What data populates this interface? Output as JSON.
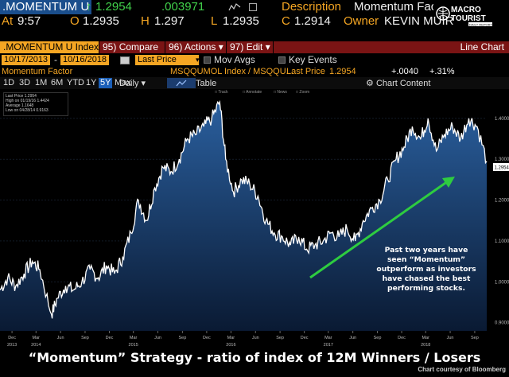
{
  "quote": {
    "ticker": ".MOMENTUM U",
    "last_change_arrow": "↑",
    "last": "1.2954",
    "change": ".003971",
    "desc_label": "Description",
    "desc_value": "Momentum Factor",
    "at_label": "At",
    "at_time": "9:57",
    "open_label": "O",
    "open_value": "1.2935",
    "high_label": "H",
    "high_value": "1.297",
    "low_label": "L",
    "low_value": "1.2935",
    "close_label": "C",
    "close_value": "1.2914",
    "owner_label": "Owner",
    "owner_value": "KEVIN MUIR"
  },
  "logo": {
    "line1": "MACRO",
    "line2": "TOURIST",
    "tag": "DAILY REPORT"
  },
  "toolbar": {
    "security": ".MOMENTUM U Index",
    "compare_num": "95)",
    "compare": "Compare",
    "actions_num": "96)",
    "actions": "Actions",
    "edit_num": "97)",
    "edit": "Edit",
    "chart_type": "Line Chart"
  },
  "controls": {
    "start_date": "10/17/2013",
    "end_date": "10/16/2018",
    "price_field": "Last Price",
    "mov_avgs": "Mov Avgs",
    "key_events": "Key Events"
  },
  "subheader": {
    "name": "Momentum Factor",
    "series_ref": "MSQQUMOL Index / MSQQU...",
    "last_price_label": "Last Price",
    "last_price": "1.2954",
    "change_abs": "+.0040",
    "change_pct": "+.31%"
  },
  "ranges": [
    "1D",
    "3D",
    "1M",
    "6M",
    "YTD",
    "1Y",
    "5Y",
    "Max"
  ],
  "range_selected": "5Y",
  "period": "Daily",
  "table_label": "Table",
  "chart_content_label": "Chart Content",
  "chart_tools": [
    "Track",
    "Annotate",
    "News",
    "Zoom"
  ],
  "legend": {
    "l1": "Last Price 1.2954",
    "l2": "High on 01/19/16 1.4424",
    "l3": "Average 1.1648",
    "l4": "Low on 04/28/14 0.9163"
  },
  "annotation": "Past two years have seen “Momentum” outperform as investors have chased the best performing stocks.",
  "title": "“Momentum” Strategy - ratio of index of 12M Winners / Losers",
  "credit": "Chart courtesy of Bloomberg",
  "colors": {
    "bloomberg_orange": "#f5a623",
    "accent_blue": "#1b5fb8",
    "line": "#ffffff",
    "arrow": "#2ecc40"
  },
  "chart_data": {
    "type": "area",
    "series": [
      {
        "name": "Last Price",
        "x": [
          "2013-10-17",
          "2013-11-15",
          "2013-12-15",
          "2014-01-15",
          "2014-02-15",
          "2014-03-15",
          "2014-04-28",
          "2014-05-20",
          "2014-06-20",
          "2014-07-20",
          "2014-08-20",
          "2014-09-20",
          "2014-10-20",
          "2014-11-20",
          "2014-12-20",
          "2015-01-20",
          "2015-02-20",
          "2015-03-20",
          "2015-04-20",
          "2015-05-20",
          "2015-06-20",
          "2015-07-20",
          "2015-08-20",
          "2015-09-20",
          "2015-10-20",
          "2015-11-20",
          "2015-12-20",
          "2016-01-19",
          "2016-02-10",
          "2016-03-10",
          "2016-04-10",
          "2016-05-10",
          "2016-06-10",
          "2016-07-10",
          "2016-08-10",
          "2016-09-10",
          "2016-10-10",
          "2016-11-10",
          "2016-12-10",
          "2017-01-10",
          "2017-02-10",
          "2017-03-10",
          "2017-04-10",
          "2017-05-10",
          "2017-06-10",
          "2017-07-10",
          "2017-08-10",
          "2017-09-10",
          "2017-10-10",
          "2017-11-10",
          "2017-12-10",
          "2018-01-10",
          "2018-02-10",
          "2018-03-10",
          "2018-04-10",
          "2018-05-10",
          "2018-06-10",
          "2018-07-10",
          "2018-08-10",
          "2018-09-10",
          "2018-10-16"
        ],
        "values": [
          0.98,
          1.01,
          0.99,
          1.02,
          1.05,
          1.03,
          0.92,
          0.96,
          0.99,
          0.98,
          1.0,
          1.03,
          1.01,
          1.04,
          1.02,
          1.06,
          1.12,
          1.2,
          1.15,
          1.23,
          1.28,
          1.27,
          1.3,
          1.35,
          1.36,
          1.38,
          1.4,
          1.44,
          1.3,
          1.22,
          1.25,
          1.24,
          1.21,
          1.15,
          1.12,
          1.11,
          1.09,
          1.11,
          1.08,
          1.09,
          1.1,
          1.12,
          1.11,
          1.13,
          1.1,
          1.15,
          1.18,
          1.2,
          1.25,
          1.3,
          1.33,
          1.38,
          1.35,
          1.4,
          1.32,
          1.36,
          1.38,
          1.35,
          1.4,
          1.38,
          1.2954
        ]
      }
    ],
    "ylim": [
      0.88,
      1.46
    ],
    "y_ticks": [
      "0.9000",
      "1.0000",
      "1.1000",
      "1.2000",
      "1.3000",
      "1.4000"
    ],
    "last_tag": "1.2954",
    "x_ticks": [
      {
        "label": "Dec",
        "year": "2013",
        "date": "2013-12-01"
      },
      {
        "label": "Mar",
        "year": "2014",
        "date": "2014-03-01"
      },
      {
        "label": "Jun",
        "year": "",
        "date": "2014-06-01"
      },
      {
        "label": "Sep",
        "year": "",
        "date": "2014-09-01"
      },
      {
        "label": "Dec",
        "year": "",
        "date": "2014-12-01"
      },
      {
        "label": "Mar",
        "year": "2015",
        "date": "2015-03-01"
      },
      {
        "label": "Jun",
        "year": "",
        "date": "2015-06-01"
      },
      {
        "label": "Sep",
        "year": "",
        "date": "2015-09-01"
      },
      {
        "label": "Dec",
        "year": "",
        "date": "2015-12-01"
      },
      {
        "label": "Mar",
        "year": "2016",
        "date": "2016-03-01"
      },
      {
        "label": "Jun",
        "year": "",
        "date": "2016-06-01"
      },
      {
        "label": "Sep",
        "year": "",
        "date": "2016-09-01"
      },
      {
        "label": "Dec",
        "year": "",
        "date": "2016-12-01"
      },
      {
        "label": "Mar",
        "year": "2017",
        "date": "2017-03-01"
      },
      {
        "label": "Jun",
        "year": "",
        "date": "2017-06-01"
      },
      {
        "label": "Sep",
        "year": "",
        "date": "2017-09-01"
      },
      {
        "label": "Dec",
        "year": "",
        "date": "2017-12-01"
      },
      {
        "label": "Mar",
        "year": "2018",
        "date": "2018-03-01"
      },
      {
        "label": "Jun",
        "year": "",
        "date": "2018-06-01"
      },
      {
        "label": "Sep",
        "year": "",
        "date": "2018-09-01"
      }
    ],
    "grid": true
  }
}
